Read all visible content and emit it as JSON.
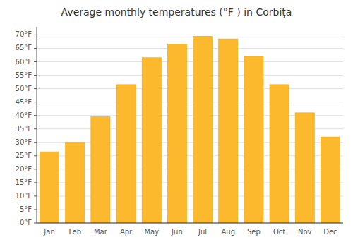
{
  "chart_data": {
    "type": "bar",
    "title": "Average monthly temperatures (°F ) in Corbița",
    "categories": [
      "Jan",
      "Feb",
      "Mar",
      "Apr",
      "May",
      "Jun",
      "Jul",
      "Aug",
      "Sep",
      "Oct",
      "Nov",
      "Dec"
    ],
    "values": [
      26.5,
      30.0,
      39.5,
      51.5,
      61.5,
      66.5,
      69.5,
      68.5,
      62.0,
      51.5,
      41.0,
      32.0
    ],
    "color": "#FDB92E",
    "ylim": [
      0,
      73
    ],
    "yticks": [
      {
        "value": 0,
        "label": "0°F"
      },
      {
        "value": 5,
        "label": "5°F"
      },
      {
        "value": 10,
        "label": "10°F"
      },
      {
        "value": 15,
        "label": "15°F"
      },
      {
        "value": 20,
        "label": "20°F"
      },
      {
        "value": 25,
        "label": "25°F"
      },
      {
        "value": 30,
        "label": "30°F"
      },
      {
        "value": 35,
        "label": "35°F"
      },
      {
        "value": 40,
        "label": "40°F"
      },
      {
        "value": 45,
        "label": "45°F"
      },
      {
        "value": 50,
        "label": "50°F"
      },
      {
        "value": 55,
        "label": "55°F"
      },
      {
        "value": 60,
        "label": "60°F"
      },
      {
        "value": 65,
        "label": "65°F"
      },
      {
        "value": 70,
        "label": "70°F"
      }
    ],
    "grid": true
  }
}
